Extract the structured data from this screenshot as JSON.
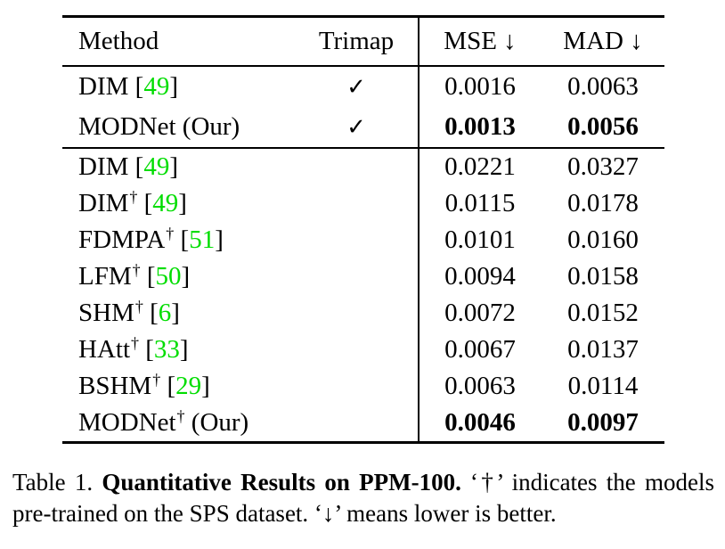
{
  "colors": {
    "background": "#ffffff",
    "text": "#000000",
    "citation": "#00dd00",
    "rule": "#000000"
  },
  "table": {
    "header": {
      "method": "Method",
      "trimap": "Trimap",
      "mse": "MSE ↓",
      "mad": "MAD ↓"
    },
    "check_symbol": "✓",
    "dagger_symbol": "†",
    "sections": [
      {
        "rows": [
          {
            "name": "DIM",
            "dagger": false,
            "cite": "49",
            "suffix": "",
            "trimap": true,
            "mse": "0.0016",
            "mad": "0.0063",
            "bold": false
          },
          {
            "name": "MODNet",
            "dagger": false,
            "cite": "",
            "suffix": "(Our)",
            "trimap": true,
            "mse": "0.0013",
            "mad": "0.0056",
            "bold": true
          }
        ]
      },
      {
        "rows": [
          {
            "name": "DIM",
            "dagger": false,
            "cite": "49",
            "suffix": "",
            "trimap": false,
            "mse": "0.0221",
            "mad": "0.0327",
            "bold": false
          },
          {
            "name": "DIM",
            "dagger": true,
            "cite": "49",
            "suffix": "",
            "trimap": false,
            "mse": "0.0115",
            "mad": "0.0178",
            "bold": false
          },
          {
            "name": "FDMPA",
            "dagger": true,
            "cite": "51",
            "suffix": "",
            "trimap": false,
            "mse": "0.0101",
            "mad": "0.0160",
            "bold": false
          },
          {
            "name": "LFM",
            "dagger": true,
            "cite": "50",
            "suffix": "",
            "trimap": false,
            "mse": "0.0094",
            "mad": "0.0158",
            "bold": false
          },
          {
            "name": "SHM",
            "dagger": true,
            "cite": "6",
            "suffix": "",
            "trimap": false,
            "mse": "0.0072",
            "mad": "0.0152",
            "bold": false
          },
          {
            "name": "HAtt",
            "dagger": true,
            "cite": "33",
            "suffix": "",
            "trimap": false,
            "mse": "0.0067",
            "mad": "0.0137",
            "bold": false
          },
          {
            "name": "BSHM",
            "dagger": true,
            "cite": "29",
            "suffix": "",
            "trimap": false,
            "mse": "0.0063",
            "mad": "0.0114",
            "bold": false
          },
          {
            "name": "MODNet",
            "dagger": true,
            "cite": "",
            "suffix": "(Our)",
            "trimap": false,
            "mse": "0.0046",
            "mad": "0.0097",
            "bold": true
          }
        ]
      }
    ]
  },
  "caption": {
    "label": "Table 1.",
    "bold": "Quantitative Results on PPM-100.",
    "rest": "‘†’ indicates the models pre-trained on the SPS dataset. ‘↓’ means lower is better."
  }
}
